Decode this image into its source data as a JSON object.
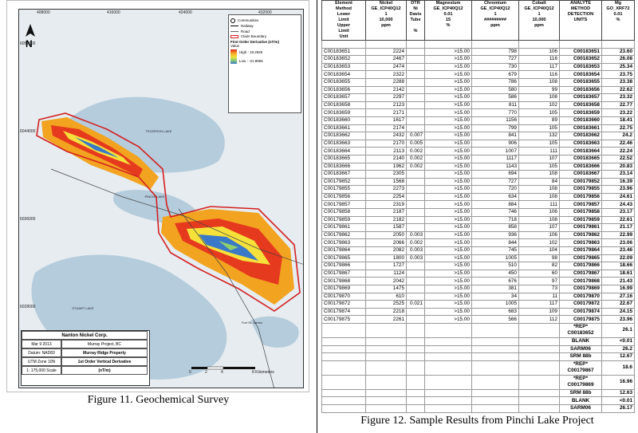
{
  "figure11": {
    "caption": "Figure 11. Geochemical Survey",
    "map": {
      "x_ticks": [
        "408000",
        "416000",
        "424000",
        "432000"
      ],
      "y_ticks": [
        "6052000",
        "6044000",
        "6036000",
        "6028000"
      ],
      "north": "N",
      "legend": {
        "items": [
          "Communities",
          "Railway",
          "Road",
          "Claim Boundary"
        ],
        "derivative_title": "First Order Derivative (nT/m)",
        "value_label": "Value",
        "high": "High : 19.2926",
        "low": "Low : -21.8865"
      },
      "place_labels": [
        "TEZZERON LAKE",
        "PINCHI LAKE",
        "STUART LAKE",
        "Fort St. James"
      ],
      "scale_labels": [
        "0",
        "2",
        "4",
        "8 Kilometers"
      ],
      "title_block": {
        "company": "Nanton Nickel Corp.",
        "date": "Mar 9 2013",
        "project": "Murray Project, BC",
        "datum": "Datum: NAD83",
        "property": "Murray Ridge Property",
        "zone": "UTM Zone 10N",
        "derivative": "1st Order Vertical Derivative",
        "scale": "1: 175,000 Scale",
        "units": "(nT/m)"
      },
      "colors": {
        "claim": "#d42020",
        "lake": "#b5ccdc",
        "land": "#e6ecf0"
      }
    }
  },
  "figure12": {
    "caption": "Figure 12. Sample Results from Pinchi Lake Project",
    "headers": [
      [
        "Element",
        "Method",
        "Lower",
        "Limit",
        "Upper",
        "Limit",
        "Unit"
      ],
      [
        "Nickel",
        "GE_ICP40Q12",
        "1",
        "10,000",
        "ppm"
      ],
      [
        "DTR",
        "Ni",
        "Davis",
        "Tube",
        "",
        "%"
      ],
      [
        "Magnesium",
        "GE_ICP40Q12",
        "0.01",
        "15",
        "%"
      ],
      [
        "Chromium",
        "GE_ICP40Q12",
        "1",
        "#########",
        "ppm"
      ],
      [
        "Cobalt",
        "GE_ICP40Q12",
        "1",
        "10,000",
        "ppm"
      ],
      [
        "ANALYTE",
        "METHOD",
        "DETECTION",
        "UNITS"
      ],
      [
        "Mg",
        "GO_XRF72",
        "0.01",
        "%"
      ]
    ],
    "rows": [
      [
        "C00183651",
        "2224",
        "",
        ">15.00",
        "798",
        "106",
        "C00183651",
        "23.60"
      ],
      [
        "C00183652",
        "2467",
        "",
        ">15.00",
        "727",
        "116",
        "C00183652",
        "26.08"
      ],
      [
        "C00183653",
        "2474",
        "",
        ">15.00",
        "730",
        "117",
        "C00183653",
        "25.34"
      ],
      [
        "C00183654",
        "2322",
        "",
        ">15.00",
        "679",
        "116",
        "C00183654",
        "23.75"
      ],
      [
        "C00183655",
        "2288",
        "",
        ">15.00",
        "786",
        "108",
        "C00183655",
        "23.38"
      ],
      [
        "C00183656",
        "2142",
        "",
        ">15.00",
        "580",
        "99",
        "C00183656",
        "22.62"
      ],
      [
        "C00183657",
        "2297",
        "",
        ">15.00",
        "586",
        "108",
        "C00183657",
        "23.32"
      ],
      [
        "C00183658",
        "2123",
        "",
        ">15.00",
        "811",
        "102",
        "C00183658",
        "22.77"
      ],
      [
        "C00183659",
        "2171",
        "",
        ">15.00",
        "770",
        "105",
        "C00183659",
        "23.22"
      ],
      [
        "C00183660",
        "1617",
        "",
        ">15.00",
        "1156",
        "89",
        "C00183660",
        "18.41"
      ],
      [
        "C00183661",
        "2174",
        "",
        ">15.00",
        "799",
        "105",
        "C00183661",
        "22.75"
      ],
      [
        "C00183662",
        "2432",
        "0.007",
        ">15.00",
        "841",
        "132",
        "C00183662",
        "24.2"
      ],
      [
        "C00183663",
        "2170",
        "0.005",
        ">15.00",
        "906",
        "105",
        "C00183663",
        "22.46"
      ],
      [
        "C00183664",
        "2113",
        "0.002",
        ">15.00",
        "1007",
        "111",
        "C00183664",
        "22.24"
      ],
      [
        "C00183665",
        "2140",
        "0.002",
        ">15.00",
        "1117",
        "107",
        "C00183665",
        "22.52"
      ],
      [
        "C00183666",
        "1962",
        "0.002",
        ">15.00",
        "1143",
        "105",
        "C00183666",
        "20.83"
      ],
      [
        "C00183667",
        "2305",
        "",
        ">15.00",
        "694",
        "108",
        "C00183667",
        "23.14"
      ],
      [
        "C00179852",
        "1568",
        "",
        ">15.00",
        "727",
        "84",
        "C00179852",
        "16.39"
      ],
      [
        "C00179855",
        "2273",
        "",
        ">15.00",
        "720",
        "108",
        "C00179855",
        "23.96"
      ],
      [
        "C00179856",
        "2254",
        "",
        ">15.00",
        "634",
        "108",
        "C00179856",
        "24.61"
      ],
      [
        "C00179857",
        "2319",
        "",
        ">15.00",
        "884",
        "111",
        "C00179857",
        "24.43"
      ],
      [
        "C00179858",
        "2187",
        "",
        ">15.00",
        "746",
        "106",
        "C00179858",
        "23.17"
      ],
      [
        "C00179859",
        "2182",
        "",
        ">15.00",
        "718",
        "108",
        "C00179859",
        "22.61"
      ],
      [
        "C00179861",
        "1587",
        "",
        ">15.00",
        "858",
        "107",
        "C00179861",
        "21.17"
      ],
      [
        "C00179862",
        "2050",
        "0.003",
        ">15.00",
        "936",
        "106",
        "C00179862",
        "22.99"
      ],
      [
        "C00179863",
        "2066",
        "0.002",
        ">15.00",
        "844",
        "102",
        "C00179863",
        "23.06"
      ],
      [
        "C00179864",
        "2082",
        "0.003",
        ">15.00",
        "745",
        "104",
        "C00179864",
        "23.46"
      ],
      [
        "C00179865",
        "1800",
        "0.003",
        ">15.00",
        "1005",
        "98",
        "C00179865",
        "22.09"
      ],
      [
        "C00179866",
        "1727",
        "",
        ">15.00",
        "510",
        "82",
        "C00179866",
        "18.66"
      ],
      [
        "C00179867",
        "1124",
        "",
        ">15.00",
        "450",
        "60",
        "C00179867",
        "18.61"
      ],
      [
        "C00179868",
        "2042",
        "",
        ">15.00",
        "676",
        "97",
        "C00179868",
        "21.43"
      ],
      [
        "C00179869",
        "1475",
        "",
        ">15.00",
        "381",
        "73",
        "C00179869",
        "16.99"
      ],
      [
        "C00179870",
        "610",
        "",
        ">15.00",
        "34",
        "11",
        "C00179870",
        "27.16"
      ],
      [
        "C00179872",
        "2525",
        "0.021",
        ">15.00",
        "1005",
        "117",
        "C00179872",
        "22.67"
      ],
      [
        "C00179874",
        "2218",
        "",
        ">15.00",
        "683",
        "109",
        "C00179874",
        "24.15"
      ],
      [
        "C00179875",
        "2261",
        "",
        ">15.00",
        "566",
        "112",
        "C00179875",
        "23.96"
      ]
    ],
    "qc_rows": [
      {
        "label": "*REP* C00183652",
        "value": "26.1",
        "tall": true
      },
      {
        "label": "BLANK",
        "value": "<0.01",
        "tall": false
      },
      {
        "label": "SARM06",
        "value": "26.2",
        "tall": false
      },
      {
        "label": "SRM 88b",
        "value": "12.67",
        "tall": false
      },
      {
        "label": "*REP* C00179867",
        "value": "18.6",
        "tall": true
      },
      {
        "label": "*REP* C00179869",
        "value": "16.96",
        "tall": true
      },
      {
        "label": "SRM 88b",
        "value": "12.63",
        "tall": false
      },
      {
        "label": "BLANK",
        "value": "<0.01",
        "tall": false
      },
      {
        "label": "SARM06",
        "value": "26.17",
        "tall": false
      }
    ]
  }
}
